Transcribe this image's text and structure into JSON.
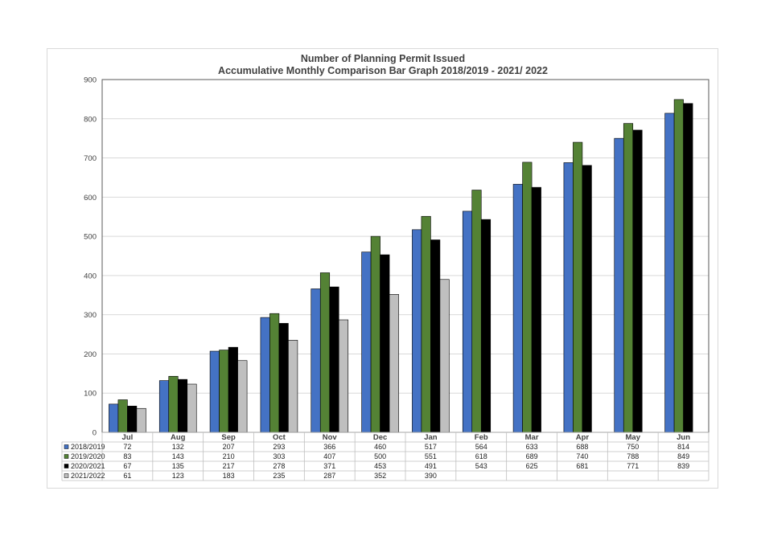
{
  "chart_data": {
    "type": "bar",
    "title": "Number of Planning Permit Issued",
    "subtitle": "Accumulative Monthly Comparison Bar Graph 2018/2019 - 2021/ 2022",
    "categories": [
      "Jul",
      "Aug",
      "Sep",
      "Oct",
      "Nov",
      "Dec",
      "Jan",
      "Feb",
      "Mar",
      "Apr",
      "May",
      "Jun"
    ],
    "ylim": [
      0,
      900
    ],
    "yticks": [
      "0",
      "100",
      "200",
      "300",
      "400",
      "500",
      "600",
      "700",
      "800",
      "900"
    ],
    "grid": true,
    "legend": "data-table-left",
    "series": [
      {
        "name": "2018/2019",
        "color": "#4472c4",
        "values": [
          72,
          132,
          207,
          293,
          366,
          460,
          517,
          564,
          633,
          688,
          750,
          814
        ]
      },
      {
        "name": "2019/2020",
        "color": "#548235",
        "values": [
          83,
          143,
          210,
          303,
          407,
          500,
          551,
          618,
          689,
          740,
          788,
          849
        ]
      },
      {
        "name": "2020/2021",
        "color": "#000000",
        "values": [
          67,
          135,
          217,
          278,
          371,
          453,
          491,
          543,
          625,
          681,
          771,
          839
        ]
      },
      {
        "name": "2021/2022",
        "color": "#bfbfbf",
        "values": [
          61,
          123,
          183,
          235,
          287,
          352,
          390,
          null,
          null,
          null,
          null,
          null
        ]
      }
    ]
  }
}
